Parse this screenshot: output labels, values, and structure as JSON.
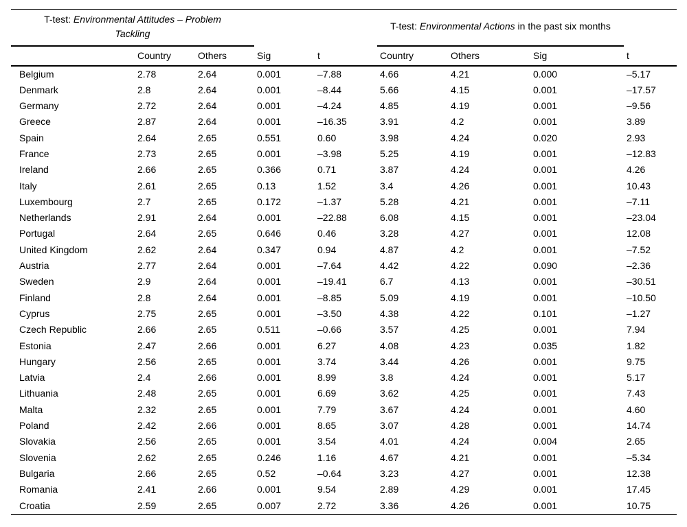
{
  "table": {
    "group_headers": [
      {
        "prefix": "T-test: ",
        "italic": "Environmental Attitudes – Problem Tackling",
        "suffix": ""
      },
      {
        "prefix": "T-test: ",
        "italic": "Environmental Actions",
        "suffix": " in the past six months"
      }
    ],
    "column_headers": [
      "Country",
      "Others",
      "Sig",
      "t",
      "Country",
      "Others",
      "Sig",
      "t"
    ],
    "rows": [
      {
        "country": "Belgium",
        "attitudes": [
          "2.78",
          "2.64",
          "0.001",
          "–7.88"
        ],
        "actions": [
          "4.66",
          "4.21",
          "0.000",
          "–5.17"
        ]
      },
      {
        "country": "Denmark",
        "attitudes": [
          "2.8",
          "2.64",
          "0.001",
          "–8.44"
        ],
        "actions": [
          "5.66",
          "4.15",
          "0.001",
          "–17.57"
        ]
      },
      {
        "country": "Germany",
        "attitudes": [
          "2.72",
          "2.64",
          "0.001",
          "–4.24"
        ],
        "actions": [
          "4.85",
          "4.19",
          "0.001",
          "–9.56"
        ]
      },
      {
        "country": "Greece",
        "attitudes": [
          "2.87",
          "2.64",
          "0.001",
          "–16.35"
        ],
        "actions": [
          "3.91",
          "4.2",
          "0.001",
          "3.89"
        ]
      },
      {
        "country": "Spain",
        "attitudes": [
          "2.64",
          "2.65",
          "0.551",
          "0.60"
        ],
        "actions": [
          "3.98",
          "4.24",
          "0.020",
          "2.93"
        ]
      },
      {
        "country": "France",
        "attitudes": [
          "2.73",
          "2.65",
          "0.001",
          "–3.98"
        ],
        "actions": [
          "5.25",
          "4.19",
          "0.001",
          "–12.83"
        ]
      },
      {
        "country": "Ireland",
        "attitudes": [
          "2.66",
          "2.65",
          "0.366",
          "0.71"
        ],
        "actions": [
          "3.87",
          "4.24",
          "0.001",
          "4.26"
        ]
      },
      {
        "country": "Italy",
        "attitudes": [
          "2.61",
          "2.65",
          "0.13",
          "1.52"
        ],
        "actions": [
          "3.4",
          "4.26",
          "0.001",
          "10.43"
        ]
      },
      {
        "country": "Luxembourg",
        "attitudes": [
          "2.7",
          "2.65",
          "0.172",
          "–1.37"
        ],
        "actions": [
          "5.28",
          "4.21",
          "0.001",
          "–7.11"
        ]
      },
      {
        "country": "Netherlands",
        "attitudes": [
          "2.91",
          "2.64",
          "0.001",
          "–22.88"
        ],
        "actions": [
          "6.08",
          "4.15",
          "0.001",
          "–23.04"
        ]
      },
      {
        "country": "Portugal",
        "attitudes": [
          "2.64",
          "2.65",
          "0.646",
          "0.46"
        ],
        "actions": [
          "3.28",
          "4.27",
          "0.001",
          "12.08"
        ]
      },
      {
        "country": "United Kingdom",
        "attitudes": [
          "2.62",
          "2.64",
          "0.347",
          "0.94"
        ],
        "actions": [
          "4.87",
          "4.2",
          "0.001",
          "–7.52"
        ]
      },
      {
        "country": "Austria",
        "attitudes": [
          "2.77",
          "2.64",
          "0.001",
          "–7.64"
        ],
        "actions": [
          "4.42",
          "4.22",
          "0.090",
          "–2.36"
        ]
      },
      {
        "country": "Sweden",
        "attitudes": [
          "2.9",
          "2.64",
          "0.001",
          "–19.41"
        ],
        "actions": [
          "6.7",
          "4.13",
          "0.001",
          "–30.51"
        ]
      },
      {
        "country": "Finland",
        "attitudes": [
          "2.8",
          "2.64",
          "0.001",
          "–8.85"
        ],
        "actions": [
          "5.09",
          "4.19",
          "0.001",
          "–10.50"
        ]
      },
      {
        "country": "Cyprus",
        "attitudes": [
          "2.75",
          "2.65",
          "0.001",
          "–3.50"
        ],
        "actions": [
          "4.38",
          "4.22",
          "0.101",
          "–1.27"
        ]
      },
      {
        "country": "Czech Republic",
        "attitudes": [
          "2.66",
          "2.65",
          "0.511",
          "–0.66"
        ],
        "actions": [
          "3.57",
          "4.25",
          "0.001",
          "7.94"
        ]
      },
      {
        "country": "Estonia",
        "attitudes": [
          "2.47",
          "2.66",
          "0.001",
          "6.27"
        ],
        "actions": [
          "4.08",
          "4.23",
          "0.035",
          "1.82"
        ]
      },
      {
        "country": "Hungary",
        "attitudes": [
          "2.56",
          "2.65",
          "0.001",
          "3.74"
        ],
        "actions": [
          "3.44",
          "4.26",
          "0.001",
          "9.75"
        ]
      },
      {
        "country": "Latvia",
        "attitudes": [
          "2.4",
          "2.66",
          "0.001",
          "8.99"
        ],
        "actions": [
          "3.8",
          "4.24",
          "0.001",
          "5.17"
        ]
      },
      {
        "country": "Lithuania",
        "attitudes": [
          "2.48",
          "2.65",
          "0.001",
          "6.69"
        ],
        "actions": [
          "3.62",
          "4.25",
          "0.001",
          "7.43"
        ]
      },
      {
        "country": "Malta",
        "attitudes": [
          "2.32",
          "2.65",
          "0.001",
          "7.79"
        ],
        "actions": [
          "3.67",
          "4.24",
          "0.001",
          "4.60"
        ]
      },
      {
        "country": "Poland",
        "attitudes": [
          "2.42",
          "2.66",
          "0.001",
          "8.65"
        ],
        "actions": [
          "3.07",
          "4.28",
          "0.001",
          "14.74"
        ]
      },
      {
        "country": "Slovakia",
        "attitudes": [
          "2.56",
          "2.65",
          "0.001",
          "3.54"
        ],
        "actions": [
          "4.01",
          "4.24",
          "0.004",
          "2.65"
        ]
      },
      {
        "country": "Slovenia",
        "attitudes": [
          "2.62",
          "2.65",
          "0.246",
          "1.16"
        ],
        "actions": [
          "4.67",
          "4.21",
          "0.001",
          "–5.34"
        ]
      },
      {
        "country": "Bulgaria",
        "attitudes": [
          "2.66",
          "2.65",
          "0.52",
          "–0.64"
        ],
        "actions": [
          "3.23",
          "4.27",
          "0.001",
          "12.38"
        ]
      },
      {
        "country": "Romania",
        "attitudes": [
          "2.41",
          "2.66",
          "0.001",
          "9.54"
        ],
        "actions": [
          "2.89",
          "4.29",
          "0.001",
          "17.45"
        ]
      },
      {
        "country": "Croatia",
        "attitudes": [
          "2.59",
          "2.65",
          "0.007",
          "2.72"
        ],
        "actions": [
          "3.36",
          "4.26",
          "0.001",
          "10.75"
        ]
      }
    ]
  }
}
